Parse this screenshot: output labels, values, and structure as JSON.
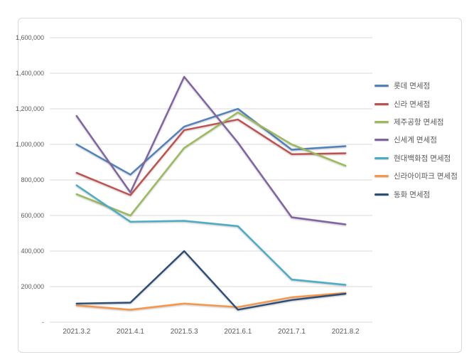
{
  "frame": {
    "background": "#ffffff",
    "border_color": "#d9d9d9"
  },
  "chart_data": {
    "type": "line",
    "title": "",
    "xlabel": "",
    "ylabel": "",
    "categories": [
      "2021.3.2",
      "2021.4.1",
      "2021.5.3",
      "2021.6.1",
      "2021.7.1",
      "2021.8.2"
    ],
    "series": [
      {
        "name": "롯데 면세점",
        "color": "#4F81BD",
        "values": [
          1000000,
          830000,
          1100000,
          1200000,
          970000,
          990000
        ]
      },
      {
        "name": "신라 면세점",
        "color": "#C0504D",
        "values": [
          840000,
          715000,
          1080000,
          1140000,
          945000,
          950000
        ]
      },
      {
        "name": "제주공항 면세점",
        "color": "#9BBB59",
        "values": [
          720000,
          600000,
          980000,
          1180000,
          1000000,
          880000
        ]
      },
      {
        "name": "신세계 면세점",
        "color": "#8064A2",
        "values": [
          1160000,
          730000,
          1380000,
          1010000,
          590000,
          550000
        ]
      },
      {
        "name": "현대백화점 면세점",
        "color": "#4BACC6",
        "values": [
          770000,
          565000,
          570000,
          540000,
          240000,
          210000
        ]
      },
      {
        "name": "신라아이파크 면세점",
        "color": "#F79646",
        "values": [
          95000,
          70000,
          105000,
          85000,
          140000,
          165000
        ]
      },
      {
        "name": "동화 면세점",
        "color": "#2C4D75",
        "values": [
          105000,
          110000,
          400000,
          70000,
          125000,
          160000
        ]
      }
    ],
    "ylim": [
      0,
      1600000
    ],
    "y_tick_step": 200000,
    "y_tick_labels": [
      "-",
      "200,000",
      "400,000",
      "600,000",
      "800,000",
      "1,000,000",
      "1,200,000",
      "1,400,000",
      "1,600,000"
    ],
    "grid": true,
    "gridline_color": "#d9d9d9",
    "axis_text_color": "#595959",
    "legend_position": "right"
  }
}
